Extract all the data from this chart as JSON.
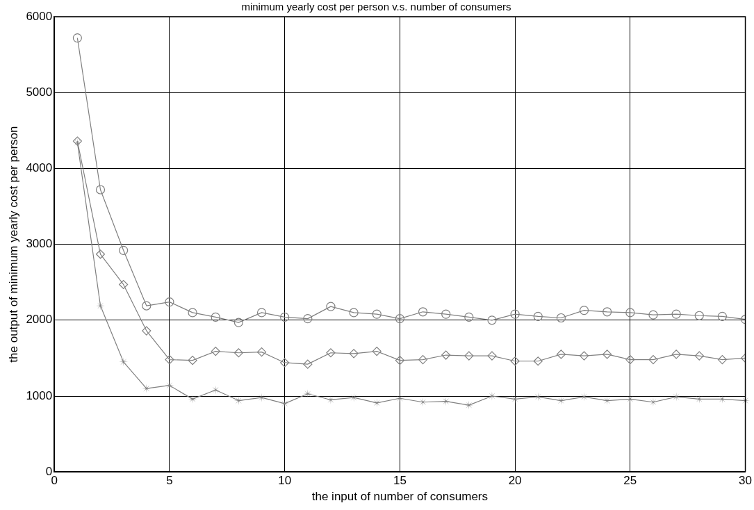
{
  "chart_data": {
    "type": "line",
    "title": "minimum yearly cost per person v.s. number of consumers",
    "xlabel": "the input of number of consumers",
    "ylabel": "the output of minimum yearly cost per person",
    "x": [
      1,
      2,
      3,
      4,
      5,
      6,
      7,
      8,
      9,
      10,
      11,
      12,
      13,
      14,
      15,
      16,
      17,
      18,
      19,
      20,
      21,
      22,
      23,
      24,
      25,
      26,
      27,
      28,
      29,
      30
    ],
    "series": [
      {
        "color": "#808080",
        "marker": "circle",
        "values": [
          5720,
          3720,
          2920,
          2190,
          2240,
          2100,
          2040,
          1970,
          2100,
          2040,
          2020,
          2180,
          2100,
          2080,
          2020,
          2110,
          2080,
          2040,
          2000,
          2080,
          2050,
          2030,
          2130,
          2110,
          2100,
          2070,
          2080,
          2060,
          2050,
          2010
        ]
      },
      {
        "color": "#808080",
        "marker": "diamond",
        "values": [
          4360,
          2870,
          2470,
          1860,
          1480,
          1470,
          1590,
          1570,
          1580,
          1440,
          1420,
          1570,
          1560,
          1590,
          1470,
          1480,
          1540,
          1530,
          1530,
          1460,
          1460,
          1550,
          1530,
          1550,
          1480,
          1480,
          1550,
          1530,
          1480,
          1500
        ]
      },
      {
        "color": "#808080",
        "marker": "star",
        "values": [
          4340,
          2190,
          1450,
          1100,
          1140,
          960,
          1080,
          940,
          980,
          900,
          1030,
          950,
          980,
          910,
          970,
          920,
          930,
          880,
          1000,
          960,
          990,
          940,
          990,
          940,
          960,
          920,
          990,
          960,
          960,
          940
        ]
      }
    ],
    "xlim": [
      0,
      30
    ],
    "xticks": [
      0,
      5,
      10,
      15,
      20,
      25,
      30
    ],
    "ylim": [
      0,
      6000
    ],
    "yticks": [
      0,
      1000,
      2000,
      3000,
      4000,
      5000,
      6000
    ],
    "grid": true,
    "legend": false
  }
}
